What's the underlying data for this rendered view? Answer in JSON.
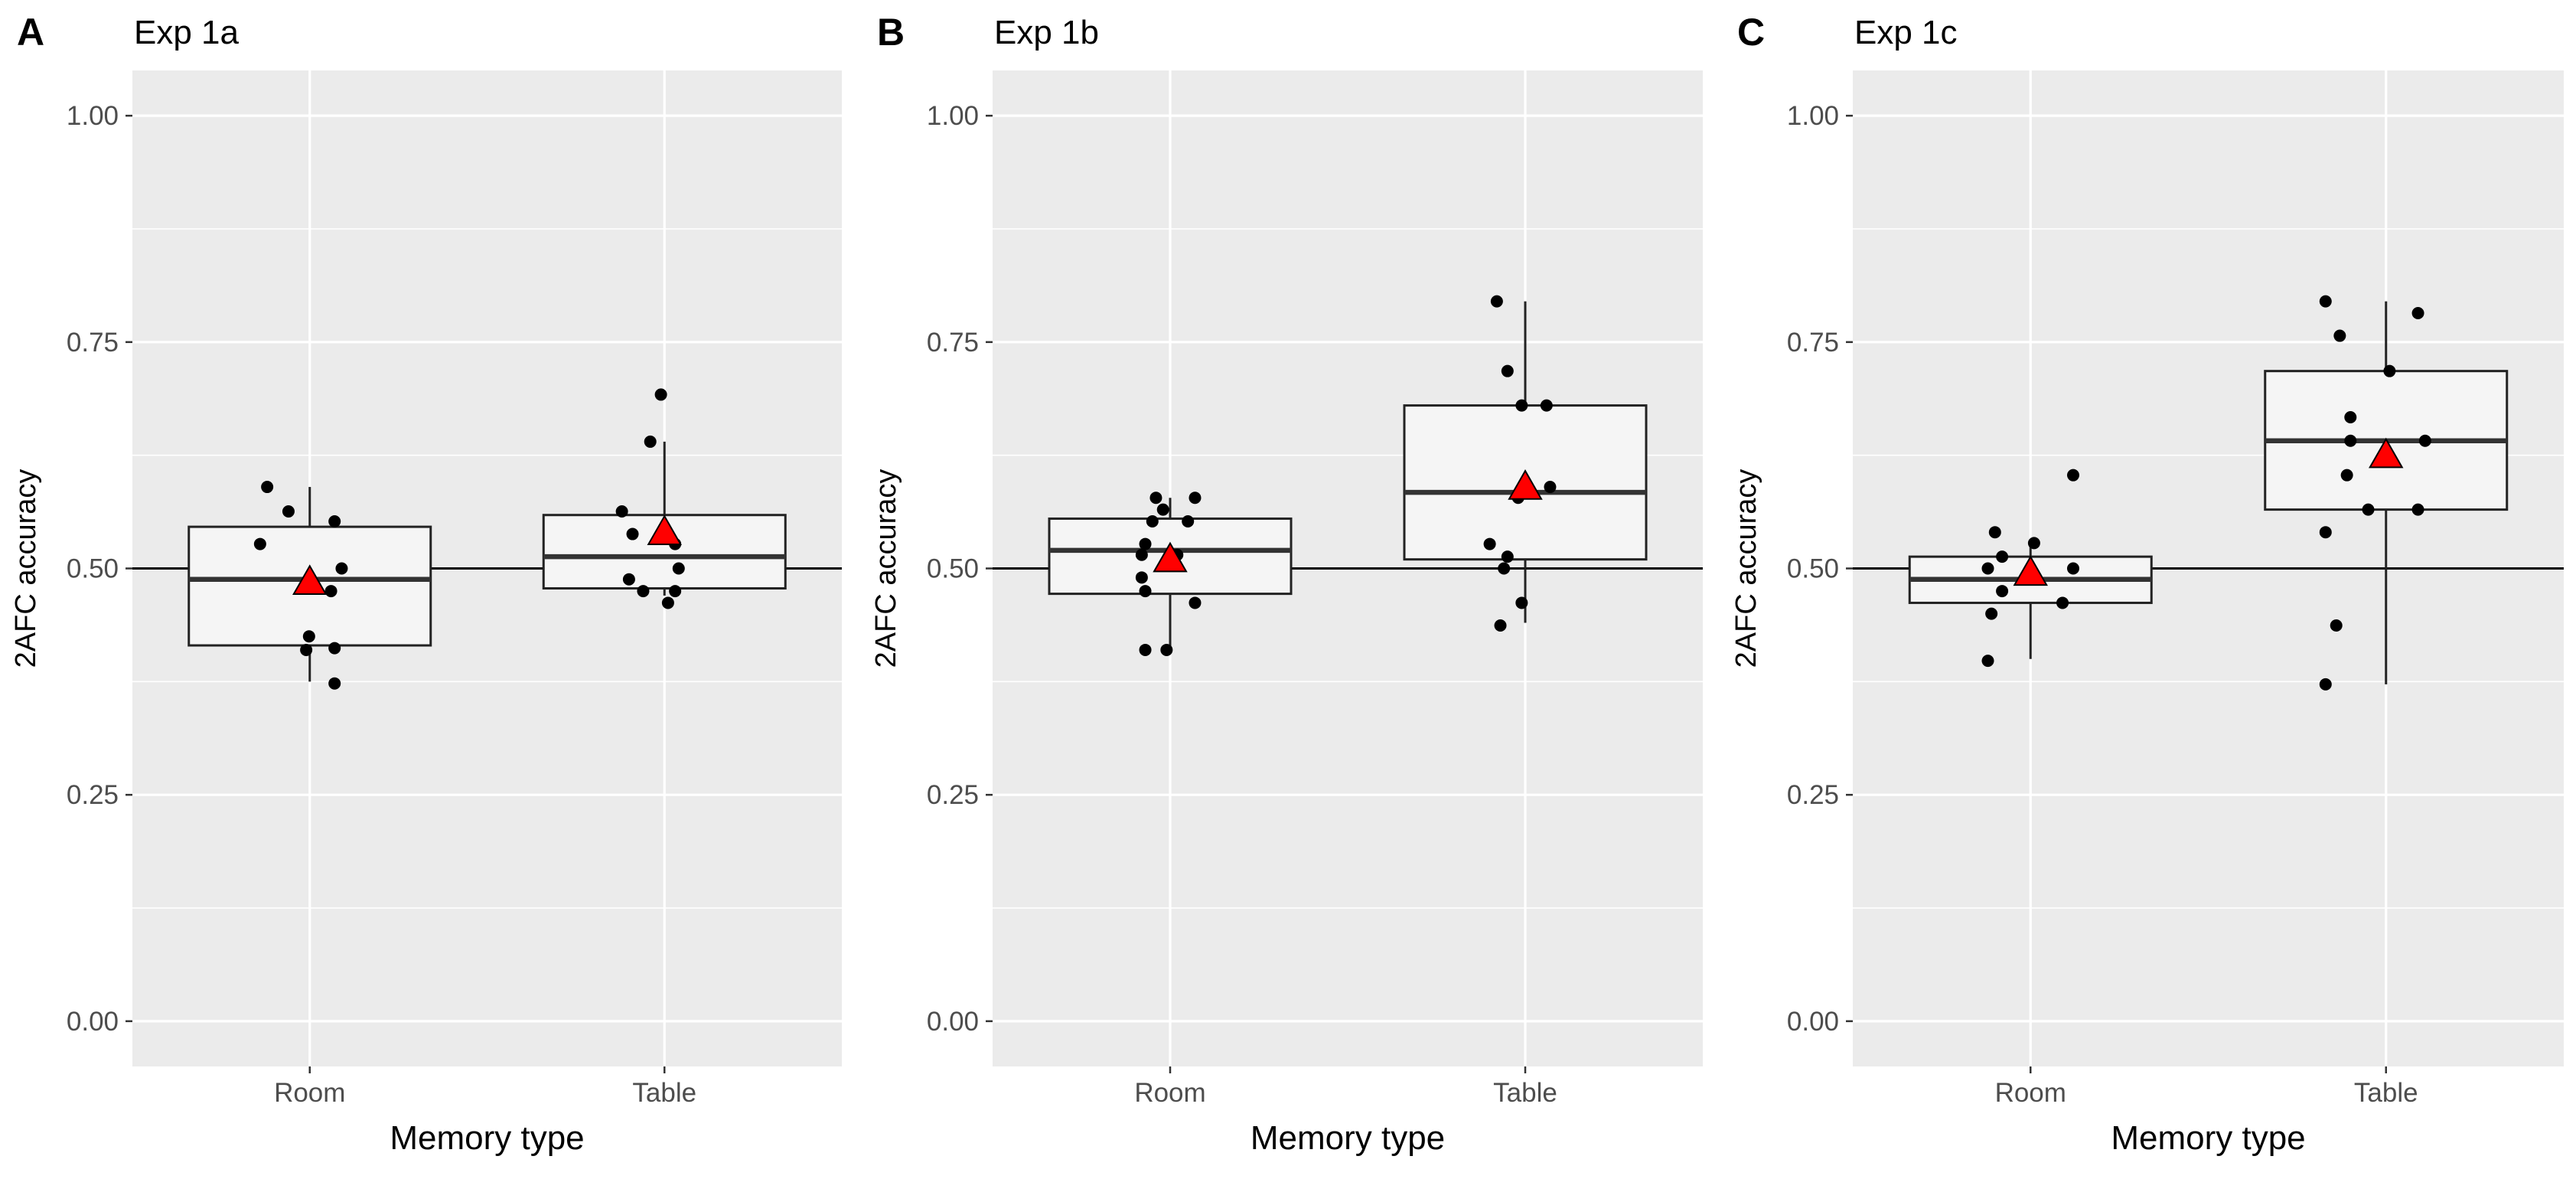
{
  "chart_data": [
    {
      "type": "box",
      "panel_letter": "A",
      "title": "Exp 1a",
      "xlabel": "Memory type",
      "ylabel": "2AFC accuracy",
      "categories": [
        "Room",
        "Table"
      ],
      "ylim": [
        -0.05,
        1.05
      ],
      "yticks": [
        0.0,
        0.25,
        0.5,
        0.75,
        1.0
      ],
      "ytick_labels": [
        "0.00",
        "0.25",
        "0.50",
        "0.75",
        "1.00"
      ],
      "reference_line": 0.5,
      "grid": true,
      "boxes": [
        {
          "category": "Room",
          "whisker_low": 0.375,
          "q1": 0.415,
          "median": 0.488,
          "q3": 0.546,
          "whisker_high": 0.59,
          "mean": 0.485,
          "points": [
            [
              -0.12,
              0.59
            ],
            [
              -0.06,
              0.563
            ],
            [
              -0.14,
              0.527
            ],
            [
              0.07,
              0.552
            ],
            [
              0.09,
              0.5
            ],
            [
              0.06,
              0.475
            ],
            [
              -0.002,
              0.425
            ],
            [
              0.07,
              0.412
            ],
            [
              -0.01,
              0.41
            ],
            [
              0.07,
              0.373
            ]
          ]
        },
        {
          "category": "Table",
          "whisker_low": 0.47,
          "q1": 0.478,
          "median": 0.513,
          "q3": 0.559,
          "whisker_high": 0.64,
          "mean": 0.54,
          "points": [
            [
              -0.01,
              0.692
            ],
            [
              -0.04,
              0.64
            ],
            [
              -0.12,
              0.563
            ],
            [
              -0.09,
              0.538
            ],
            [
              0.03,
              0.527
            ],
            [
              0.04,
              0.5
            ],
            [
              -0.1,
              0.488
            ],
            [
              -0.06,
              0.475
            ],
            [
              0.03,
              0.475
            ],
            [
              0.01,
              0.462
            ]
          ]
        }
      ]
    },
    {
      "type": "box",
      "panel_letter": "B",
      "title": "Exp 1b",
      "xlabel": "Memory type",
      "ylabel": "2AFC accuracy",
      "categories": [
        "Room",
        "Table"
      ],
      "ylim": [
        -0.05,
        1.05
      ],
      "yticks": [
        0.0,
        0.25,
        0.5,
        0.75,
        1.0
      ],
      "ytick_labels": [
        "0.00",
        "0.25",
        "0.50",
        "0.75",
        "1.00"
      ],
      "reference_line": 0.5,
      "grid": true,
      "boxes": [
        {
          "category": "Room",
          "whisker_low": 0.41,
          "q1": 0.472,
          "median": 0.52,
          "q3": 0.555,
          "whisker_high": 0.578,
          "mean": 0.51,
          "points": [
            [
              -0.04,
              0.578
            ],
            [
              0.07,
              0.578
            ],
            [
              -0.02,
              0.565
            ],
            [
              -0.05,
              0.552
            ],
            [
              0.05,
              0.552
            ],
            [
              -0.07,
              0.527
            ],
            [
              -0.08,
              0.515
            ],
            [
              0.02,
              0.515
            ],
            [
              -0.08,
              0.49
            ],
            [
              -0.07,
              0.475
            ],
            [
              0.07,
              0.462
            ],
            [
              -0.07,
              0.41
            ],
            [
              -0.01,
              0.41
            ]
          ]
        },
        {
          "category": "Table",
          "whisker_low": 0.44,
          "q1": 0.51,
          "median": 0.584,
          "q3": 0.68,
          "whisker_high": 0.795,
          "mean": 0.59,
          "points": [
            [
              -0.08,
              0.795
            ],
            [
              -0.05,
              0.718
            ],
            [
              -0.01,
              0.68
            ],
            [
              0.06,
              0.68
            ],
            [
              0.07,
              0.59
            ],
            [
              -0.02,
              0.578
            ],
            [
              -0.1,
              0.527
            ],
            [
              -0.05,
              0.513
            ],
            [
              -0.06,
              0.5
            ],
            [
              -0.01,
              0.462
            ],
            [
              -0.07,
              0.437
            ]
          ]
        }
      ]
    },
    {
      "type": "box",
      "panel_letter": "C",
      "title": "Exp 1c",
      "xlabel": "Memory type",
      "ylabel": "2AFC accuracy",
      "categories": [
        "Room",
        "Table"
      ],
      "ylim": [
        -0.05,
        1.05
      ],
      "yticks": [
        0.0,
        0.25,
        0.5,
        0.75,
        1.0
      ],
      "ytick_labels": [
        "0.00",
        "0.25",
        "0.50",
        "0.75",
        "1.00"
      ],
      "reference_line": 0.5,
      "grid": true,
      "boxes": [
        {
          "category": "Room",
          "whisker_low": 0.4,
          "q1": 0.462,
          "median": 0.488,
          "q3": 0.513,
          "whisker_high": 0.53,
          "mean": 0.495,
          "points": [
            [
              0.12,
              0.603
            ],
            [
              -0.1,
              0.54
            ],
            [
              0.01,
              0.528
            ],
            [
              -0.08,
              0.513
            ],
            [
              -0.12,
              0.5
            ],
            [
              0.12,
              0.5
            ],
            [
              -0.08,
              0.475
            ],
            [
              0.09,
              0.462
            ],
            [
              -0.11,
              0.45
            ],
            [
              -0.12,
              0.398
            ]
          ]
        },
        {
          "category": "Table",
          "whisker_low": 0.372,
          "q1": 0.565,
          "median": 0.641,
          "q3": 0.718,
          "whisker_high": 0.795,
          "mean": 0.625,
          "points": [
            [
              -0.17,
              0.795
            ],
            [
              0.09,
              0.782
            ],
            [
              -0.13,
              0.757
            ],
            [
              0.01,
              0.718
            ],
            [
              -0.1,
              0.667
            ],
            [
              -0.1,
              0.641
            ],
            [
              0.11,
              0.641
            ],
            [
              -0.11,
              0.603
            ],
            [
              -0.05,
              0.565
            ],
            [
              0.09,
              0.565
            ],
            [
              -0.17,
              0.54
            ],
            [
              -0.14,
              0.437
            ],
            [
              -0.17,
              0.372
            ]
          ]
        }
      ]
    }
  ]
}
